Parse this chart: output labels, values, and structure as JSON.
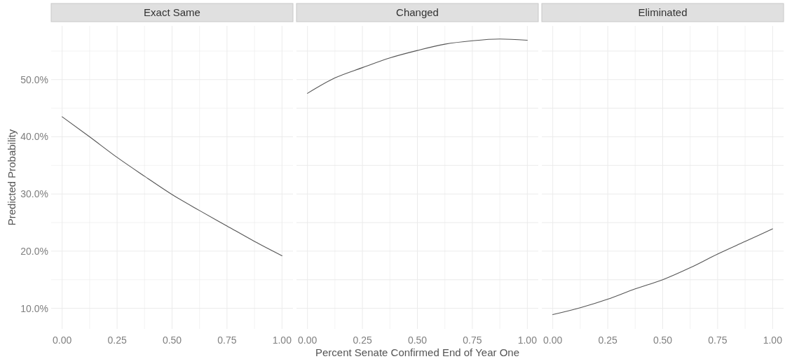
{
  "chart_data": [
    {
      "type": "line",
      "title": "Exact Same",
      "ylabel": "Predicted Probability",
      "x": [
        0,
        0.125,
        0.25,
        0.375,
        0.5,
        0.625,
        0.75,
        0.875,
        1
      ],
      "series": [
        {
          "color": "#555555",
          "values": [
            43.5,
            40.0,
            36.4,
            33.1,
            29.9,
            27.1,
            24.4,
            21.7,
            19.2
          ]
        }
      ],
      "xlim": [
        -0.05,
        1.05
      ],
      "ylim": [
        6.4,
        59.4
      ],
      "xticks": [
        {
          "value": 0,
          "label": "0.00"
        },
        {
          "value": 0.125,
          "label": null
        },
        {
          "value": 0.25,
          "label": "0.25"
        },
        {
          "value": 0.375,
          "label": null
        },
        {
          "value": 0.5,
          "label": "0.50"
        },
        {
          "value": 0.625,
          "label": null
        },
        {
          "value": 0.75,
          "label": "0.75"
        },
        {
          "value": 0.875,
          "label": null
        },
        {
          "value": 1,
          "label": "1.00"
        }
      ],
      "yticks": [
        {
          "value": 10,
          "label": "10.0%"
        },
        {
          "value": 15,
          "label": null
        },
        {
          "value": 20,
          "label": "20.0%"
        },
        {
          "value": 25,
          "label": null
        },
        {
          "value": 30,
          "label": "30.0%"
        },
        {
          "value": 35,
          "label": null
        },
        {
          "value": 40,
          "label": "40.0%"
        },
        {
          "value": 45,
          "label": null
        },
        {
          "value": 50,
          "label": "50.0%"
        },
        {
          "value": 55,
          "label": null
        }
      ],
      "grid": true
    },
    {
      "type": "line",
      "title": "Changed",
      "xlabel": "Percent Senate Confirmed End of Year One",
      "x": [
        0,
        0.125,
        0.25,
        0.375,
        0.5,
        0.625,
        0.75,
        0.875,
        1
      ],
      "series": [
        {
          "color": "#555555",
          "values": [
            47.6,
            50.3,
            52.1,
            53.8,
            55.1,
            56.2,
            56.8,
            57.1,
            56.9
          ]
        }
      ],
      "xlim": [
        -0.05,
        1.05
      ],
      "ylim": [
        6.4,
        59.4
      ],
      "xticks": [
        {
          "value": 0,
          "label": "0.00"
        },
        {
          "value": 0.125,
          "label": null
        },
        {
          "value": 0.25,
          "label": "0.25"
        },
        {
          "value": 0.375,
          "label": null
        },
        {
          "value": 0.5,
          "label": "0.50"
        },
        {
          "value": 0.625,
          "label": null
        },
        {
          "value": 0.75,
          "label": "0.75"
        },
        {
          "value": 0.875,
          "label": null
        },
        {
          "value": 1,
          "label": "1.00"
        }
      ],
      "yticks": [
        10,
        15,
        20,
        25,
        30,
        35,
        40,
        45,
        50,
        55
      ],
      "grid": true,
      "tick_labels": "x"
    },
    {
      "type": "line",
      "title": "Eliminated",
      "x": [
        0,
        0.125,
        0.25,
        0.375,
        0.5,
        0.625,
        0.75,
        0.875,
        1
      ],
      "series": [
        {
          "color": "#555555",
          "values": [
            8.9,
            10.1,
            11.6,
            13.4,
            15.0,
            17.1,
            19.5,
            21.7,
            23.9
          ]
        }
      ],
      "xlim": [
        -0.05,
        1.05
      ],
      "ylim": [
        6.4,
        59.4
      ],
      "xticks": [
        {
          "value": 0,
          "label": "0.00"
        },
        {
          "value": 0.125,
          "label": null
        },
        {
          "value": 0.25,
          "label": "0.25"
        },
        {
          "value": 0.375,
          "label": null
        },
        {
          "value": 0.5,
          "label": "0.50"
        },
        {
          "value": 0.625,
          "label": null
        },
        {
          "value": 0.75,
          "label": "0.75"
        },
        {
          "value": 0.875,
          "label": null
        },
        {
          "value": 1,
          "label": "1.00"
        }
      ],
      "yticks": [
        10,
        15,
        20,
        25,
        30,
        35,
        40,
        45,
        50,
        55
      ],
      "grid": true,
      "tick_labels": "x"
    }
  ]
}
